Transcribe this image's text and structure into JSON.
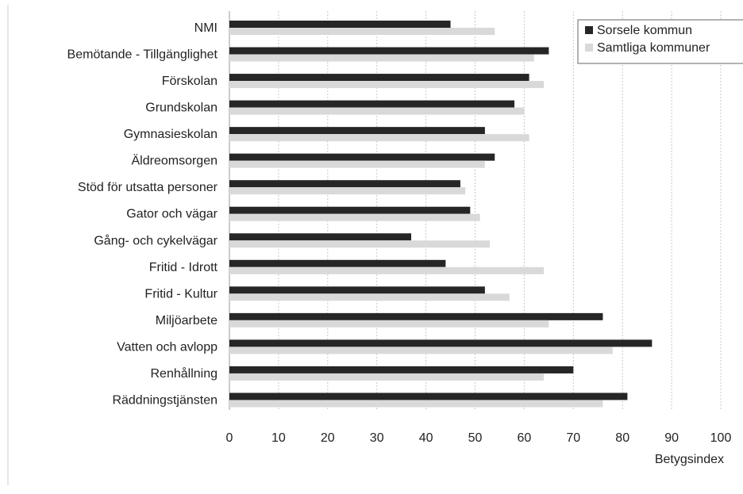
{
  "chart_data": {
    "type": "bar",
    "orientation": "horizontal",
    "categories": [
      "NMI",
      "Bemötande - Tillgänglighet",
      "Förskolan",
      "Grundskolan",
      "Gymnasieskolan",
      "Äldreomsorgen",
      "Stöd för utsatta personer",
      "Gator och vägar",
      "Gång- och cykelvägar",
      "Fritid - Idrott",
      "Fritid - Kultur",
      "Miljöarbete",
      "Vatten och avlopp",
      "Renhållning",
      "Räddningstjänsten"
    ],
    "series": [
      {
        "name": "Sorsele kommun",
        "color": "#262626",
        "values": [
          45,
          65,
          61,
          58,
          52,
          54,
          47,
          49,
          37,
          44,
          52,
          76,
          86,
          70,
          81
        ]
      },
      {
        "name": "Samtliga kommuner",
        "color": "#d9d9d9",
        "values": [
          54,
          62,
          64,
          60,
          61,
          52,
          48,
          51,
          53,
          64,
          57,
          65,
          78,
          64,
          76
        ]
      }
    ],
    "xlabel": "Betygsindex",
    "xlim": [
      0,
      100
    ],
    "xticks": [
      "0",
      "10",
      "20",
      "30",
      "40",
      "50",
      "60",
      "70",
      "80",
      "90",
      "100"
    ],
    "grid": true,
    "legend_position": "top-right"
  }
}
